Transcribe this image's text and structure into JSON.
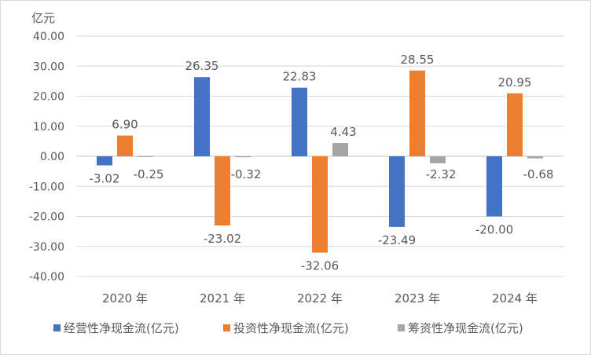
{
  "chart_data": {
    "type": "bar",
    "title": "",
    "ylabel": "亿元",
    "xlabel": "",
    "ylim": [
      -40,
      40
    ],
    "yticks": [
      40,
      30,
      20,
      10,
      0,
      -10,
      -20,
      -30,
      -40
    ],
    "ytick_labels": [
      "40.00",
      "30.00",
      "20.00",
      "10.00",
      "0.00",
      "-10.00",
      "-20.00",
      "-30.00",
      "-40.00"
    ],
    "categories": [
      "2020 年",
      "2021 年",
      "2022 年",
      "2023 年",
      "2024 年"
    ],
    "grid": true,
    "legend_position": "bottom",
    "series": [
      {
        "name": "经营性净现金流(亿元)",
        "color": "#4472C4",
        "values": [
          -3.02,
          26.35,
          22.83,
          -23.49,
          -20.0
        ]
      },
      {
        "name": "投资性净现金流(亿元)",
        "color": "#ED7D31",
        "values": [
          6.9,
          -23.02,
          -32.06,
          28.55,
          20.95
        ]
      },
      {
        "name": "筹资性净现金流(亿元)",
        "color": "#A5A5A5",
        "values": [
          -0.25,
          -0.32,
          4.43,
          -2.32,
          -0.68
        ]
      }
    ]
  }
}
